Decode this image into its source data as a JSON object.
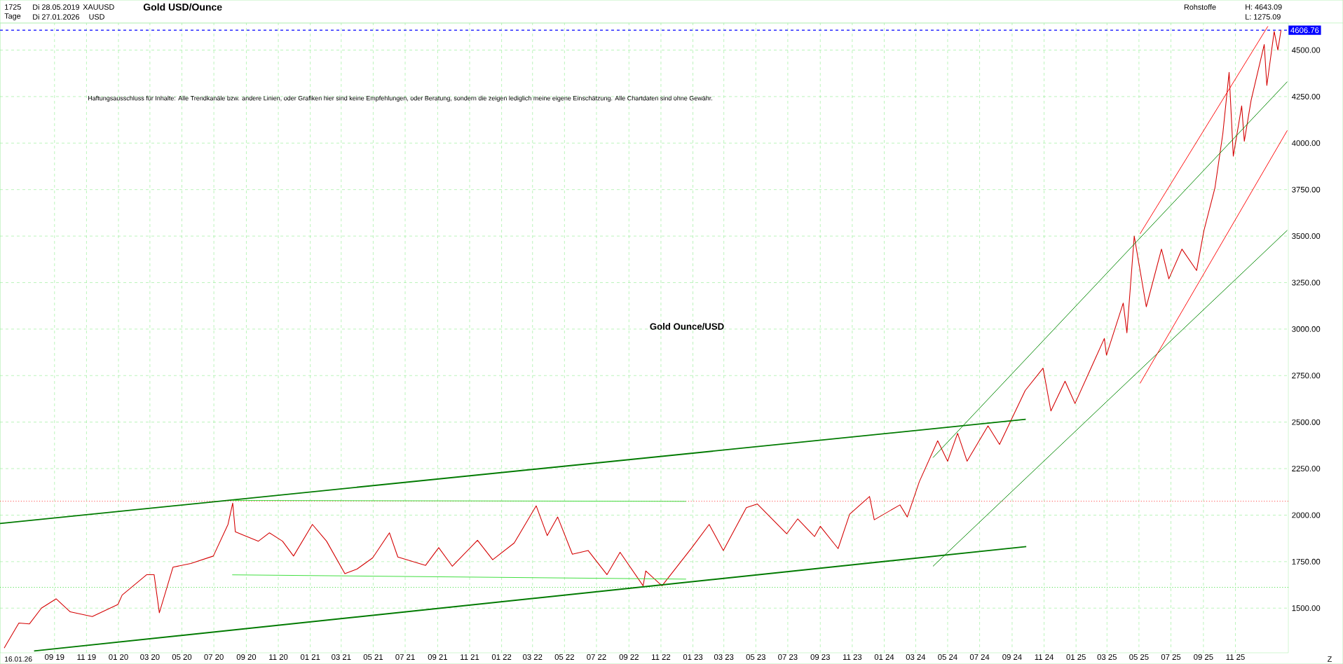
{
  "chart_data": {
    "type": "line",
    "title": "Gold USD/Ounce",
    "annotations": [
      "1725",
      "Tage",
      "Di 28.05.2019",
      "Di 27.01.2026",
      "XAUUSD",
      "USD",
      "Rohstoffe",
      "H: 4643.09",
      "L: 1275.09",
      "Haftungsausschluss für Inhalte: Alle Trendkanäle bzw. andere Linien, oder Grafiken hier sind keine Empfehlungen, oder Beratung, sondern die zeigen lediglich meine eigene Einschätzung. Alle Chartdaten sind ohne Gewähr.",
      "Gold Ounce/USD",
      "16.01.26",
      "Z"
    ],
    "xlim": [
      "2019-05-20",
      "2026-02-10"
    ],
    "ylim": [
      1260,
      4645
    ],
    "xticks": [
      {
        "value": "2019-09-01",
        "label": "09 19"
      },
      {
        "value": "2019-11-01",
        "label": "11 19"
      },
      {
        "value": "2020-01-01",
        "label": "01 20"
      },
      {
        "value": "2020-03-01",
        "label": "03 20"
      },
      {
        "value": "2020-05-01",
        "label": "05 20"
      },
      {
        "value": "2020-07-01",
        "label": "07 20"
      },
      {
        "value": "2020-09-01",
        "label": "09 20"
      },
      {
        "value": "2020-11-01",
        "label": "11 20"
      },
      {
        "value": "2021-01-01",
        "label": "01 21"
      },
      {
        "value": "2021-03-01",
        "label": "03 21"
      },
      {
        "value": "2021-05-01",
        "label": "05 21"
      },
      {
        "value": "2021-07-01",
        "label": "07 21"
      },
      {
        "value": "2021-09-01",
        "label": "09 21"
      },
      {
        "value": "2021-11-01",
        "label": "11 21"
      },
      {
        "value": "2022-01-01",
        "label": "01 22"
      },
      {
        "value": "2022-03-01",
        "label": "03 22"
      },
      {
        "value": "2022-05-01",
        "label": "05 22"
      },
      {
        "value": "2022-07-01",
        "label": "07 22"
      },
      {
        "value": "2022-09-01",
        "label": "09 22"
      },
      {
        "value": "2022-11-01",
        "label": "11 22"
      },
      {
        "value": "2023-01-01",
        "label": "01 23"
      },
      {
        "value": "2023-03-01",
        "label": "03 23"
      },
      {
        "value": "2023-05-01",
        "label": "05 23"
      },
      {
        "value": "2023-07-01",
        "label": "07 23"
      },
      {
        "value": "2023-09-01",
        "label": "09 23"
      },
      {
        "value": "2023-11-01",
        "label": "11 23"
      },
      {
        "value": "2024-01-01",
        "label": "01 24"
      },
      {
        "value": "2024-03-01",
        "label": "03 24"
      },
      {
        "value": "2024-05-01",
        "label": "05 24"
      },
      {
        "value": "2024-07-01",
        "label": "07 24"
      },
      {
        "value": "2024-09-01",
        "label": "09 24"
      },
      {
        "value": "2024-11-01",
        "label": "11 24"
      },
      {
        "value": "2025-01-01",
        "label": "01 25"
      },
      {
        "value": "2025-03-01",
        "label": "03 25"
      },
      {
        "value": "2025-05-01",
        "label": "05 25"
      },
      {
        "value": "2025-07-01",
        "label": "07 25"
      },
      {
        "value": "2025-09-01",
        "label": "09 25"
      },
      {
        "value": "2025-11-01",
        "label": "11 25"
      }
    ],
    "yticks": [
      {
        "value": 1500,
        "label": "1500.00"
      },
      {
        "value": 1750,
        "label": "1750.00"
      },
      {
        "value": 2000,
        "label": "2000.00"
      },
      {
        "value": 2250,
        "label": "2250.00"
      },
      {
        "value": 2500,
        "label": "2500.00"
      },
      {
        "value": 2750,
        "label": "2750.00"
      },
      {
        "value": 3000,
        "label": "3000.00"
      },
      {
        "value": 3250,
        "label": "3250.00"
      },
      {
        "value": 3500,
        "label": "3500.00"
      },
      {
        "value": 3750,
        "label": "3750.00"
      },
      {
        "value": 4000,
        "label": "4000.00"
      },
      {
        "value": 4250,
        "label": "4250.00"
      },
      {
        "value": 4500,
        "label": "4500.00"
      }
    ],
    "grid": true,
    "series": [
      {
        "color": "#d40000",
        "x": [
          "2019-05-28",
          "2019-06-01",
          "2019-06-25",
          "2019-07-15",
          "2019-08-07",
          "2019-09-04",
          "2019-10-01",
          "2019-11-12",
          "2019-12-31",
          "2020-01-08",
          "2020-02-24",
          "2020-03-09",
          "2020-03-19",
          "2020-04-14",
          "2020-05-18",
          "2020-06-30",
          "2020-07-28",
          "2020-08-06",
          "2020-08-11",
          "2020-09-24",
          "2020-10-15",
          "2020-11-09",
          "2020-11-30",
          "2021-01-05",
          "2021-02-01",
          "2021-03-08",
          "2021-03-31",
          "2021-04-30",
          "2021-06-01",
          "2021-06-17",
          "2021-08-09",
          "2021-09-03",
          "2021-09-29",
          "2021-11-16",
          "2021-12-15",
          "2022-01-25",
          "2022-03-08",
          "2022-03-29",
          "2022-04-18",
          "2022-05-16",
          "2022-06-15",
          "2022-07-21",
          "2022-08-15",
          "2022-09-28",
          "2022-10-03",
          "2022-11-03",
          "2022-12-30",
          "2023-02-01",
          "2023-02-28",
          "2023-04-13",
          "2023-05-04",
          "2023-06-29",
          "2023-07-20",
          "2023-08-21",
          "2023-09-01",
          "2023-10-05",
          "2023-10-27",
          "2023-12-04",
          "2023-12-13",
          "2024-01-31",
          "2024-02-14",
          "2024-03-08",
          "2024-04-12",
          "2024-05-01",
          "2024-05-20",
          "2024-06-07",
          "2024-07-17",
          "2024-08-08",
          "2024-09-26",
          "2024-10-30",
          "2024-11-14",
          "2024-12-11",
          "2024-12-30",
          "2025-01-31",
          "2025-02-24",
          "2025-02-28",
          "2025-04-01",
          "2025-04-08",
          "2025-04-22",
          "2025-05-15",
          "2025-06-13",
          "2025-06-27",
          "2025-07-22",
          "2025-08-19",
          "2025-09-02",
          "2025-09-23",
          "2025-10-08",
          "2025-10-20",
          "2025-10-28",
          "2025-11-13",
          "2025-11-18",
          "2025-12-01",
          "2025-12-26",
          "2025-12-31",
          "2026-01-14",
          "2026-01-21",
          "2026-01-27"
        ],
        "values": [
          1285,
          1305,
          1420,
          1415,
          1500,
          1550,
          1480,
          1455,
          1520,
          1570,
          1680,
          1680,
          1475,
          1720,
          1740,
          1780,
          1950,
          2065,
          1910,
          1860,
          1905,
          1860,
          1780,
          1950,
          1860,
          1685,
          1710,
          1770,
          1905,
          1775,
          1730,
          1825,
          1725,
          1865,
          1760,
          1850,
          2050,
          1890,
          1990,
          1790,
          1810,
          1680,
          1800,
          1620,
          1700,
          1620,
          1825,
          1950,
          1810,
          2040,
          2060,
          1900,
          1980,
          1885,
          1940,
          1820,
          2005,
          2100,
          1975,
          2055,
          1990,
          2180,
          2400,
          2290,
          2440,
          2290,
          2480,
          2380,
          2670,
          2790,
          2560,
          2720,
          2600,
          2800,
          2950,
          2860,
          3140,
          2980,
          3500,
          3120,
          3430,
          3270,
          3430,
          3315,
          3530,
          3760,
          4050,
          4380,
          3930,
          4200,
          4010,
          4230,
          4530,
          4310,
          4600,
          4500,
          4607
        ]
      },
      {
        "color": "#007a00",
        "x": [
          "2019-05-20",
          "2024-09-27"
        ],
        "values": [
          1955,
          2515
        ]
      },
      {
        "color": "#007a00",
        "x": [
          "2019-07-24",
          "2024-09-28"
        ],
        "values": [
          1270,
          1831
        ]
      },
      {
        "color": "#33dd33",
        "x": [
          "2020-08-05",
          "2022-12-19"
        ],
        "values": [
          2079,
          2074
        ]
      },
      {
        "color": "#33dd33",
        "x": [
          "2020-08-05",
          "2022-12-19"
        ],
        "values": [
          1679,
          1656
        ]
      },
      {
        "color": "#008800",
        "x": [
          "2024-04-03",
          "2026-02-08"
        ],
        "values": [
          2309,
          4330
        ]
      },
      {
        "color": "#008800",
        "x": [
          "2024-04-03",
          "2026-02-08"
        ],
        "values": [
          1725,
          3531
        ]
      },
      {
        "color": "#ff0000",
        "x": [
          "2025-05-03",
          "2026-01-02"
        ],
        "values": [
          3512,
          4628
        ]
      },
      {
        "color": "#ff0000",
        "x": [
          "2025-05-03",
          "2026-02-08"
        ],
        "values": [
          2708,
          4068
        ]
      }
    ],
    "ref_lines": [
      {
        "axis": "y",
        "value": 4606.76,
        "label": "4606.76",
        "color": "#0000ff",
        "line_style": "dashed"
      },
      {
        "axis": "y",
        "value": 2075,
        "color": "#ff4444",
        "line_style": "dotted"
      },
      {
        "axis": "y",
        "value": 1612,
        "color": "#44dd44",
        "line_style": "dotted"
      }
    ]
  }
}
